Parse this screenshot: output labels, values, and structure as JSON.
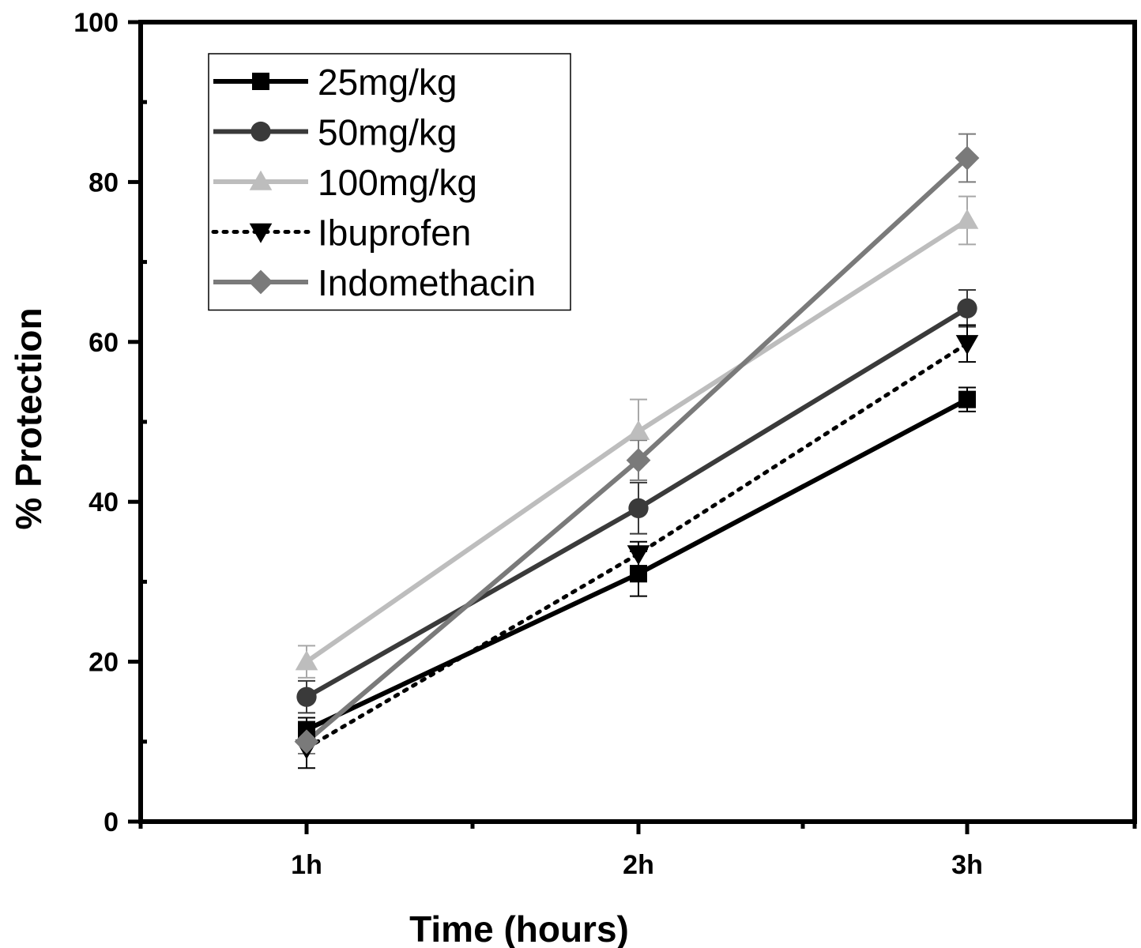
{
  "chart_data": {
    "type": "line",
    "title": "",
    "xlabel": "Time (hours)",
    "ylabel": "% Protection",
    "categories": [
      "1h",
      "2h",
      "3h"
    ],
    "ylim": [
      0,
      100
    ],
    "yticks": [
      0,
      20,
      40,
      60,
      80,
      100
    ],
    "grid": false,
    "legend_position": "top-left",
    "series": [
      {
        "name": "25mg/kg",
        "values": [
          11.5,
          31.0,
          52.8
        ],
        "errors": [
          1.5,
          2.8,
          1.5
        ],
        "color": "#000000",
        "marker": "square",
        "line": "solid"
      },
      {
        "name": "50mg/kg",
        "values": [
          15.6,
          39.2,
          64.2
        ],
        "errors": [
          2.0,
          3.2,
          2.3
        ],
        "color": "#3a3a3a",
        "marker": "circle",
        "line": "solid"
      },
      {
        "name": "100mg/kg",
        "values": [
          20.0,
          48.8,
          75.2
        ],
        "errors": [
          2.0,
          4.0,
          3.0
        ],
        "color": "#bdbdbd",
        "marker": "triangle-up",
        "line": "solid"
      },
      {
        "name": "Ibuprofen",
        "values": [
          9.2,
          33.5,
          59.8
        ],
        "errors": [
          2.5,
          1.5,
          2.3
        ],
        "color": "#000000",
        "marker": "triangle-down",
        "line": "dotted"
      },
      {
        "name": "Indomethacin",
        "values": [
          10.0,
          45.2,
          83.0
        ],
        "errors": [
          1.5,
          2.5,
          3.0
        ],
        "color": "#7a7a7a",
        "marker": "diamond",
        "line": "solid"
      }
    ]
  }
}
